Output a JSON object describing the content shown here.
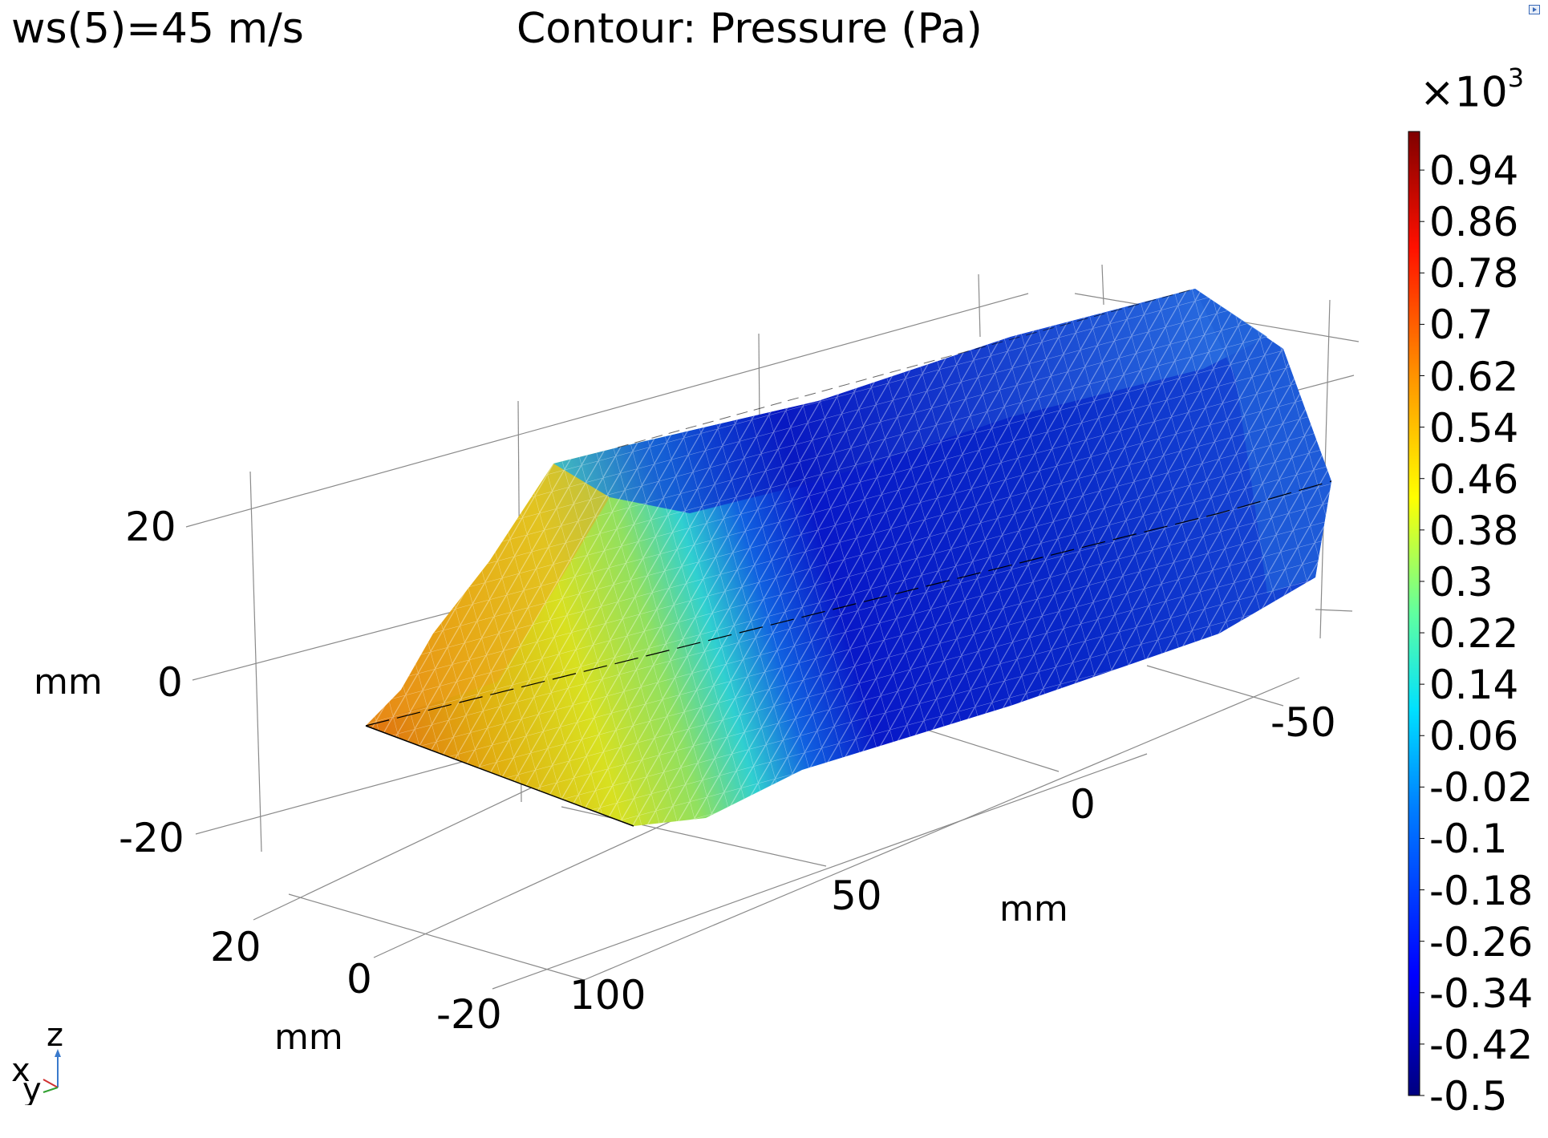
{
  "header": {
    "parameter_label": "ws(5)=45 m/s",
    "title": "Contour: Pressure (Pa)"
  },
  "chart_data": {
    "type": "heatmap",
    "title": "Contour: Pressure (Pa)",
    "parameter": "ws(5)=45 m/s",
    "quantity": "Pressure",
    "unit": "Pa",
    "colorbar": {
      "multiplier": "×10³",
      "multiplier_base": "×10",
      "multiplier_exp": "3",
      "range": [
        -0.5,
        1.0
      ],
      "ticks": [
        "0.94",
        "0.86",
        "0.78",
        "0.7",
        "0.62",
        "0.54",
        "0.46",
        "0.38",
        "0.3",
        "0.22",
        "0.14",
        "0.06",
        "-0.02",
        "-0.1",
        "-0.18",
        "-0.26",
        "-0.34",
        "-0.42",
        "-0.5"
      ],
      "colormap": [
        "#00007f",
        "#0000ff",
        "#007fff",
        "#00ffff",
        "#7fff7f",
        "#ffff00",
        "#ff7f00",
        "#ff0000",
        "#7f0000"
      ]
    },
    "axes": {
      "x": {
        "label": "mm",
        "ticks": [
          "-50",
          "0",
          "50",
          "100"
        ]
      },
      "y": {
        "label": "mm",
        "ticks": [
          "20",
          "0",
          "-20"
        ]
      },
      "z": {
        "label": "mm",
        "ticks": [
          "20",
          "0",
          "-20"
        ]
      }
    },
    "grid": true,
    "triad": {
      "x": "x",
      "y": "y",
      "z": "z"
    }
  }
}
